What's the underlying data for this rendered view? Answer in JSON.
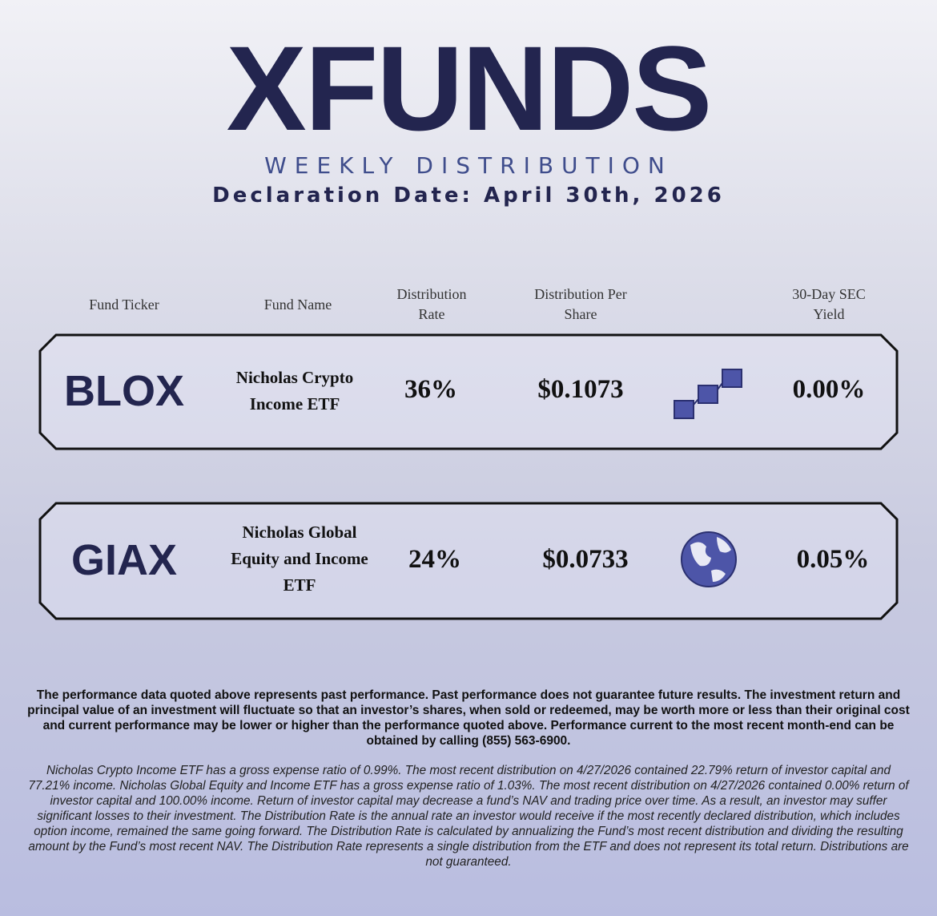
{
  "header": {
    "logo": "XFUNDS",
    "title": "WEEKLY DISTRIBUTION",
    "declaration": "Declaration Date: April 30th, 2026"
  },
  "table": {
    "columns": [
      "Fund Ticker",
      "Fund Name",
      "Distribution Rate",
      "Distribution Per Share",
      "30-Day SEC Yield"
    ],
    "rows": [
      [
        "BLOX",
        "Nicholas Crypto Income ETF",
        "36%",
        "$0.1073",
        "0.00%"
      ],
      [
        "GIAX",
        "Nicholas Global Equity and Income ETF",
        "24%",
        "$0.0733",
        "0.05%"
      ]
    ]
  },
  "disclaimer": "The performance data quoted above represents past performance. Past performance does not guarantee future results. The investment return and principal value of an investment will fluctuate so that an investor’s shares, when sold or redeemed, may be worth more or less than their original cost and current performance may be lower or higher than the performance quoted above. Performance current to the most recent month-end can be obtained by calling (855) 563-6900.",
  "footnote": "Nicholas Crypto Income ETF has a gross expense ratio of 0.99%. The most recent distribution on 4/27/2026 contained 22.79% return of investor capital and 77.21% income. Nicholas Global Equity and Income ETF has a gross expense ratio of 1.03%. The most recent distribution on 4/27/2026 contained 0.00% return of investor capital and 100.00% income. Return of investor capital may decrease a fund’s NAV and trading price over time. As a result, an investor may suffer significant losses to their investment. The Distribution Rate is the annual rate an investor would receive if the most recently declared distribution, which includes option income, remained the same going forward. The Distribution Rate is calculated by annualizing the Fund’s most recent distribution and dividing the resulting amount by the Fund’s most recent NAV. The Distribution Rate represents a single distribution from the ETF and does not represent its total return. Distributions are not guaranteed."
}
